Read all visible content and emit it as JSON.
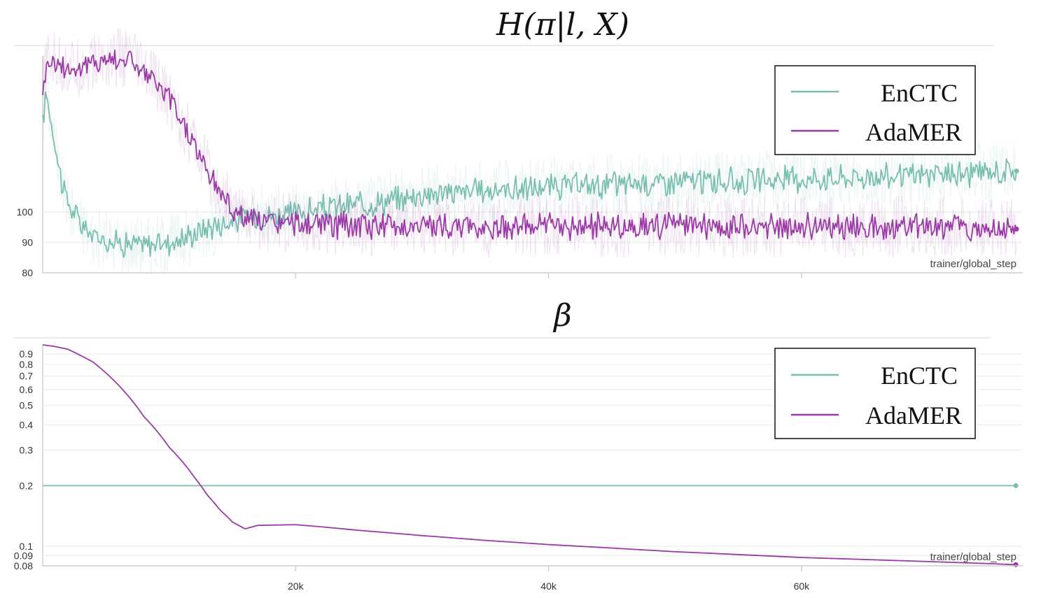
{
  "colors": {
    "enctc": "#78bfb0",
    "adamer": "#9b3aa6"
  },
  "chart_data": [
    {
      "type": "line",
      "title": "H(π|l, X)",
      "xlabel": "trainer/global_step",
      "ylabel": "",
      "ylim": [
        80,
        160
      ],
      "yscale": "linear",
      "yticks": [
        80,
        90,
        100
      ],
      "xlim": [
        0,
        77500
      ],
      "xticks": [
        20000,
        40000,
        60000
      ],
      "xtick_labels": [
        "",
        "",
        ""
      ],
      "legend": {
        "position": "top-right",
        "entries": [
          "EnCTC",
          "AdaMER"
        ]
      },
      "series": [
        {
          "name": "EnCTC",
          "x": [
            0,
            250,
            500,
            1000,
            1500,
            2000,
            3000,
            4000,
            5000,
            6000,
            7000,
            8000,
            9000,
            10000,
            11000,
            12000,
            13000,
            14000,
            15000,
            16000,
            17000,
            18000,
            19000,
            20000,
            22000,
            24000,
            26000,
            28000,
            30000,
            35000,
            40000,
            45000,
            50000,
            55000,
            60000,
            65000,
            70000,
            75000,
            77000
          ],
          "y": [
            128,
            140,
            134,
            122,
            110,
            103,
            96,
            92,
            91,
            90,
            89.5,
            89,
            89.8,
            90,
            91,
            93,
            95,
            96,
            97,
            98,
            99,
            99,
            99,
            99.5,
            101,
            102,
            103,
            104,
            106,
            107,
            108,
            109,
            110,
            110,
            111,
            111.5,
            112,
            113,
            113.5
          ]
        },
        {
          "name": "AdaMER",
          "x": [
            0,
            250,
            500,
            1000,
            2000,
            3000,
            4000,
            5000,
            6000,
            7000,
            8000,
            9000,
            10000,
            11000,
            12000,
            13000,
            14000,
            15000,
            16000,
            17000,
            18000,
            20000,
            25000,
            30000,
            35000,
            40000,
            45000,
            50000,
            55000,
            60000,
            65000,
            70000,
            75000,
            77000
          ],
          "y": [
            140,
            147,
            150,
            149,
            147,
            147.5,
            149,
            150,
            150.5,
            150,
            146,
            142,
            137,
            130,
            122,
            114,
            107,
            101,
            98,
            97,
            96.5,
            96,
            95.5,
            95.5,
            95,
            95.5,
            95,
            95.5,
            95,
            95.5,
            95,
            95.5,
            95,
            95
          ]
        }
      ]
    },
    {
      "type": "line",
      "title": "β",
      "xlabel": "trainer/global_step",
      "ylabel": "",
      "yscale": "log",
      "ylim": [
        0.08,
        1
      ],
      "yticks": [
        0.08,
        0.09,
        0.1,
        0.2,
        0.3,
        0.4,
        0.5,
        0.6,
        0.7,
        0.8,
        0.9
      ],
      "ytick_labels": [
        "0.08",
        "0.09",
        "0.1",
        "0.2",
        "0.3",
        "0.4",
        "0.5",
        "0.6",
        "0.7",
        "0.8",
        "0.9"
      ],
      "xlim": [
        0,
        77500
      ],
      "xticks": [
        20000,
        40000,
        60000
      ],
      "xtick_labels": [
        "20k",
        "40k",
        "60k"
      ],
      "legend": {
        "position": "top-right",
        "entries": [
          "EnCTC",
          "AdaMER"
        ]
      },
      "series": [
        {
          "name": "EnCTC",
          "x": [
            0,
            77000
          ],
          "y": [
            0.2,
            0.2
          ]
        },
        {
          "name": "AdaMER",
          "x": [
            0,
            1000,
            2000,
            4000,
            6000,
            8000,
            10000,
            12000,
            13000,
            14000,
            15000,
            16000,
            17000,
            20000,
            22000,
            25000,
            30000,
            35000,
            40000,
            45000,
            50000,
            55000,
            60000,
            65000,
            70000,
            75000,
            77000
          ],
          "y": [
            1.0,
            0.98,
            0.95,
            0.82,
            0.63,
            0.44,
            0.31,
            0.22,
            0.18,
            0.152,
            0.132,
            0.122,
            0.127,
            0.128,
            0.125,
            0.12,
            0.113,
            0.107,
            0.102,
            0.098,
            0.094,
            0.091,
            0.088,
            0.086,
            0.084,
            0.082,
            0.081
          ]
        }
      ]
    }
  ]
}
